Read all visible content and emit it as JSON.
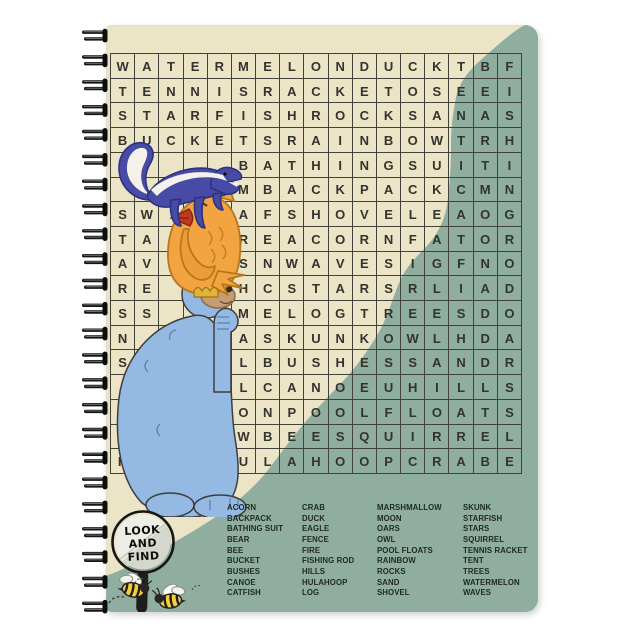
{
  "product": {
    "description": "Spiral notebook with word search cover",
    "colors": {
      "cover_cream": "#EBE4C7",
      "cover_green": "#8FAE9F",
      "grid_line": "#41423A",
      "letter_color": "#33342C",
      "word_color": "#1F2822",
      "bear_blue": "#94B9E2",
      "owl_orange": "#F2A441",
      "skunk_blue": "#474BA6",
      "bee_yellow": "#F3CE3E"
    }
  },
  "magnifier": {
    "line1": "LOOK",
    "line2": "AND",
    "line3": "FIND"
  },
  "puzzle": {
    "rows": 17,
    "cols": 17,
    "grid": [
      [
        "W",
        "A",
        "T",
        "E",
        "R",
        "M",
        "E",
        "L",
        "O",
        "N",
        "D",
        "U",
        "C",
        "K",
        "T",
        "B",
        "F"
      ],
      [
        "T",
        "E",
        "N",
        "N",
        "I",
        "S",
        "R",
        "A",
        "C",
        "K",
        "E",
        "T",
        "O",
        "S",
        "E",
        "E",
        "I"
      ],
      [
        "S",
        "T",
        "A",
        "R",
        "F",
        "I",
        "S",
        "H",
        "R",
        "O",
        "C",
        "K",
        "S",
        "A",
        "N",
        "A",
        "S"
      ],
      [
        "B",
        "U",
        "C",
        "K",
        "E",
        "T",
        "S",
        "R",
        "A",
        "I",
        "N",
        "B",
        "O",
        "W",
        "T",
        "R",
        "H"
      ],
      [
        "",
        "",
        "",
        "",
        "",
        "B",
        "A",
        "T",
        "H",
        "I",
        "N",
        "G",
        "S",
        "U",
        "I",
        "T",
        "I"
      ],
      [
        "",
        "",
        "",
        "",
        "",
        "M",
        "B",
        "A",
        "C",
        "K",
        "P",
        "A",
        "C",
        "K",
        "C",
        "M",
        "N"
      ],
      [
        "S",
        "W",
        "",
        "",
        "",
        "A",
        "F",
        "S",
        "H",
        "O",
        "V",
        "E",
        "L",
        "E",
        "A",
        "O",
        "G"
      ],
      [
        "T",
        "A",
        "",
        "",
        "",
        "R",
        "E",
        "A",
        "C",
        "O",
        "R",
        "N",
        "F",
        "A",
        "T",
        "O",
        "R"
      ],
      [
        "A",
        "V",
        "",
        "",
        "",
        "S",
        "N",
        "W",
        "A",
        "V",
        "E",
        "S",
        "I",
        "G",
        "F",
        "N",
        "O"
      ],
      [
        "R",
        "E",
        "",
        "",
        "",
        "H",
        "C",
        "S",
        "T",
        "A",
        "R",
        "S",
        "R",
        "L",
        "I",
        "A",
        "D"
      ],
      [
        "S",
        "S",
        "",
        "",
        "",
        "M",
        "E",
        "L",
        "O",
        "G",
        "T",
        "R",
        "E",
        "E",
        "S",
        "D",
        "O"
      ],
      [
        "N",
        "",
        "",
        "",
        "",
        "A",
        "S",
        "K",
        "U",
        "N",
        "K",
        "O",
        "W",
        "L",
        "H",
        "D",
        "A"
      ],
      [
        "S",
        "",
        "",
        "",
        "",
        "L",
        "B",
        "U",
        "S",
        "H",
        "E",
        "S",
        "S",
        "A",
        "N",
        "D",
        "R"
      ],
      [
        "",
        "",
        "",
        "",
        "",
        "L",
        "C",
        "A",
        "N",
        "O",
        "E",
        "U",
        "H",
        "I",
        "L",
        "L",
        "S"
      ],
      [
        "",
        "",
        "",
        "",
        "",
        "O",
        "N",
        "P",
        "O",
        "O",
        "L",
        "F",
        "L",
        "O",
        "A",
        "T",
        "S"
      ],
      [
        "",
        "",
        "",
        "",
        "A",
        "W",
        "B",
        "E",
        "E",
        "S",
        "Q",
        "U",
        "I",
        "R",
        "R",
        "E",
        "L"
      ],
      [
        "K",
        "",
        "",
        "",
        "H",
        "U",
        "L",
        "A",
        "H",
        "O",
        "O",
        "P",
        "C",
        "R",
        "A",
        "B",
        "E"
      ]
    ]
  },
  "word_list": {
    "columns": [
      [
        "ACORN",
        "BACKPACK",
        "BATHING SUIT",
        "BEAR",
        "BEE",
        "BUCKET",
        "BUSHES",
        "CANOE",
        "CATFISH"
      ],
      [
        "CRAB",
        "DUCK",
        "EAGLE",
        "FENCE",
        "FIRE",
        "FISHING ROD",
        "HILLS",
        "HULAHOOP",
        "LOG"
      ],
      [
        "MARSHMALLOW",
        "MOON",
        "OARS",
        "OWL",
        "POOL FLOATS",
        "RAINBOW",
        "ROCKS",
        "SAND",
        "SHOVEL"
      ],
      [
        "SKUNK",
        "STARFISH",
        "STARS",
        "SQUIRREL",
        "TENNIS RACKET",
        "TENT",
        "TREES",
        "WATERMELON",
        "WAVES"
      ]
    ]
  },
  "illustrations": {
    "stack": [
      "skunk",
      "owl",
      "bear"
    ],
    "extras": [
      "magnifying-glass",
      "bee",
      "bee"
    ]
  }
}
